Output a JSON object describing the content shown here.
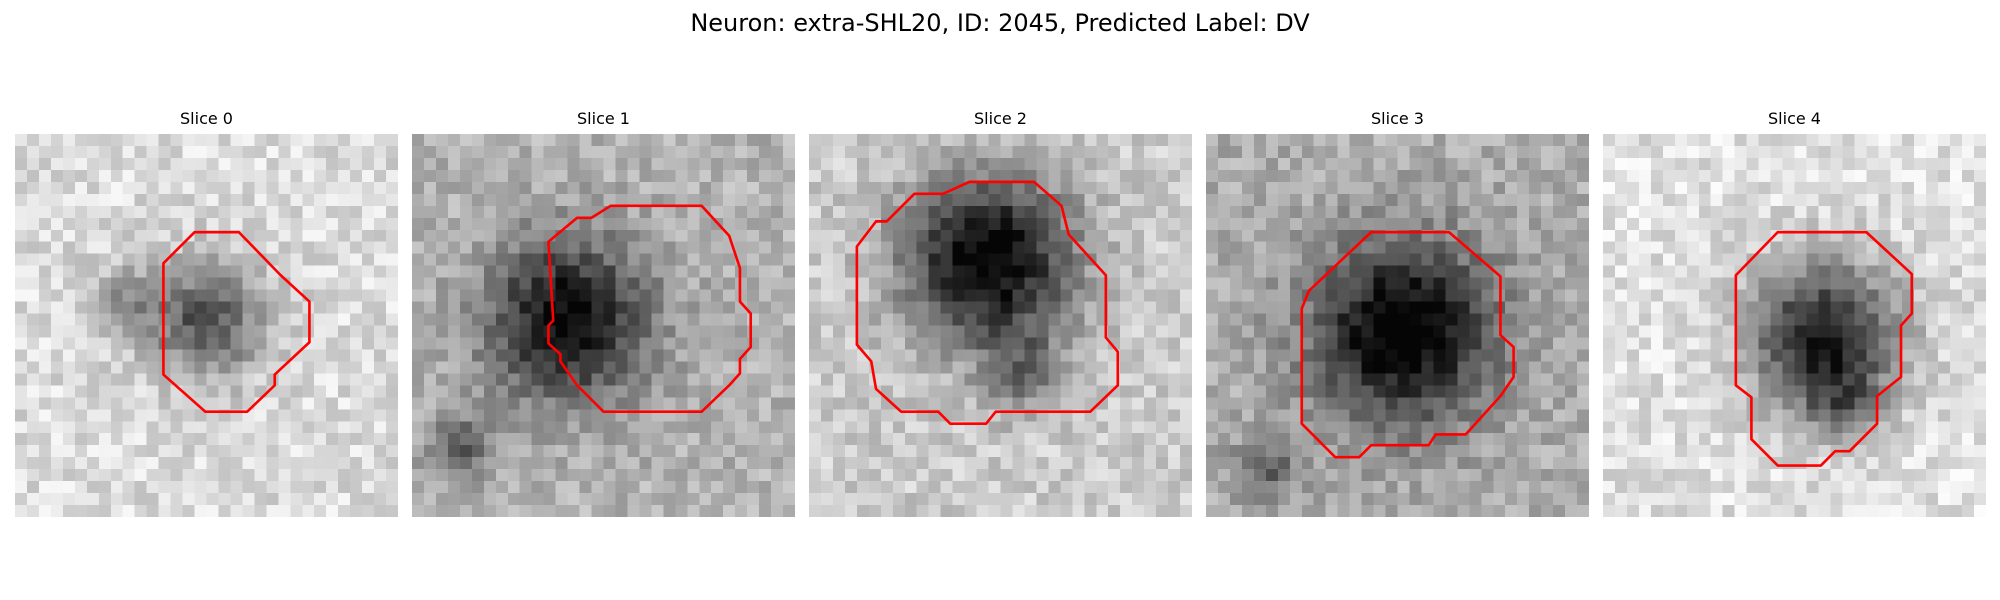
{
  "figure": {
    "title": "Neuron: extra-SHL20, ID: 2045, Predicted Label: DV"
  },
  "panels": [
    {
      "title": "Slice 0"
    },
    {
      "title": "Slice 1"
    },
    {
      "title": "Slice 2"
    },
    {
      "title": "Slice 3"
    },
    {
      "title": "Slice 4"
    }
  ],
  "colors": {
    "contour": "#ff0000",
    "background": "#ffffff"
  }
}
